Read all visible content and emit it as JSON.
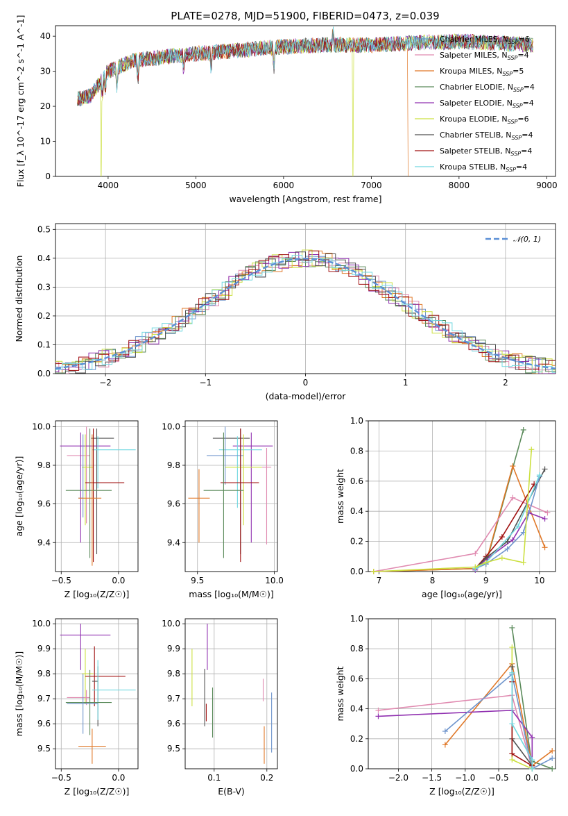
{
  "figure": {
    "title": "PLATE=0278, MJD=51900, FIBERID=0473, z=0.039"
  },
  "styles": {
    "palette": {
      "chabrier_miles": "#6e94cc",
      "salpeter_miles": "#e08ab0",
      "kroupa_miles": "#e07828",
      "chabrier_elodie": "#5a8a5a",
      "salpeter_elodie": "#9030b0",
      "kroupa_elodie": "#cce040",
      "chabrier_stelib": "#505050",
      "salpeter_stelib": "#a01010",
      "kroupa_stelib": "#70d8e0",
      "gaussian": "#5a8fd6"
    }
  },
  "chart_data": [
    {
      "id": "spectrum",
      "type": "line",
      "title": "PLATE=0278, MJD=51900, FIBERID=0473, z=0.039",
      "xlabel": "wavelength [Angstrom, rest frame]",
      "ylabel": "Flux [f_λ 10^-17 erg cm^-2 s^-1 A^-1]",
      "xlim": [
        3400,
        9100
      ],
      "ylim": [
        0,
        43
      ],
      "xticks": [
        4000,
        5000,
        6000,
        7000,
        8000,
        9000
      ],
      "yticks": [
        0,
        10,
        20,
        30,
        40
      ],
      "grid": false,
      "legend_position": "top-right",
      "series": [
        {
          "name": "Chabrier MILES, N_SSP=6",
          "color_key": "chabrier_miles"
        },
        {
          "name": "Salpeter MILES, N_SSP=4",
          "color_key": "salpeter_miles"
        },
        {
          "name": "Kroupa MILES, N_SSP=5",
          "color_key": "kroupa_miles",
          "cutoff": 7420
        },
        {
          "name": "Chabrier ELODIE, N_SSP=4",
          "color_key": "chabrier_elodie"
        },
        {
          "name": "Salpeter ELODIE, N_SSP=4",
          "color_key": "salpeter_elodie"
        },
        {
          "name": "Kroupa ELODIE, N_SSP=6",
          "color_key": "kroupa_elodie",
          "drops": [
            3920,
            6790
          ]
        },
        {
          "name": "Chabrier STELIB, N_SSP=4",
          "color_key": "chabrier_stelib"
        },
        {
          "name": "Salpeter STELIB, N_SSP=4",
          "color_key": "salpeter_stelib"
        },
        {
          "name": "Kroupa STELIB, N_SSP=4",
          "color_key": "kroupa_stelib"
        }
      ],
      "continuum": {
        "x": [
          3650,
          3800,
          4000,
          4300,
          4600,
          5000,
          5500,
          6000,
          6500,
          7000,
          7400,
          8000,
          8500,
          8850
        ],
        "y": [
          22,
          23,
          30,
          33,
          34,
          35,
          36,
          37,
          37.5,
          37.5,
          38,
          38.5,
          38,
          37.5
        ]
      }
    },
    {
      "id": "residuals",
      "type": "line",
      "xlabel": "(data-model)/error",
      "ylabel": "Normed distribution",
      "xlim": [
        -2.5,
        2.5
      ],
      "ylim": [
        0,
        0.52
      ],
      "xticks": [
        -2,
        -1,
        0,
        1,
        2
      ],
      "yticks": [
        0.0,
        0.1,
        0.2,
        0.3,
        0.4,
        0.5
      ],
      "grid": true,
      "legend_position": "top-right",
      "legend": [
        {
          "label": "𝒩(0, 1)",
          "color_key": "gaussian",
          "style": "dashed"
        }
      ],
      "histogram_peaks": [
        0.49,
        0.48,
        0.46,
        0.44,
        0.43,
        0.42,
        0.41,
        0.4,
        0.47
      ],
      "series_color_keys": [
        "chabrier_miles",
        "salpeter_miles",
        "kroupa_miles",
        "chabrier_elodie",
        "salpeter_elodie",
        "kroupa_elodie",
        "chabrier_stelib",
        "salpeter_stelib",
        "kroupa_stelib"
      ]
    },
    {
      "id": "z_vs_age",
      "type": "scatter",
      "xlabel": "Z [log₁₀(Z/Z☉)]",
      "ylabel": "age  [log₁₀(age/yr)]",
      "xlim": [
        -0.55,
        0.17
      ],
      "ylim": [
        9.25,
        10.03
      ],
      "xticks": [
        -0.5,
        0.0
      ],
      "yticks": [
        9.4,
        9.6,
        9.8,
        10.0
      ],
      "grid": true,
      "points": [
        {
          "x": -0.28,
          "y": 9.85,
          "xerr": [
            0.17,
            0.03
          ],
          "yerr": [
            0.35,
            0.15
          ],
          "color_key": "salpeter_miles"
        },
        {
          "x": -0.19,
          "y": 9.94,
          "xerr": [
            0.05,
            0.15
          ],
          "yerr": [
            0.6,
            0.05
          ],
          "color_key": "chabrier_stelib"
        },
        {
          "x": -0.33,
          "y": 9.9,
          "xerr": [
            0.18,
            0.26
          ],
          "yerr": [
            0.5,
            0.07
          ],
          "color_key": "salpeter_elodie"
        },
        {
          "x": -0.18,
          "y": 9.88,
          "xerr": [
            0.05,
            0.33
          ],
          "yerr": [
            0.2,
            0.07
          ],
          "color_key": "kroupa_stelib"
        },
        {
          "x": -0.29,
          "y": 9.79,
          "xerr": [
            0.03,
            0.07
          ],
          "yerr": [
            0.3,
            0.17
          ],
          "color_key": "kroupa_elodie"
        },
        {
          "x": -0.22,
          "y": 9.71,
          "xerr": [
            0.07,
            0.27
          ],
          "yerr": [
            0.41,
            0.28
          ],
          "color_key": "salpeter_stelib"
        },
        {
          "x": -0.25,
          "y": 9.67,
          "xerr": [
            0.21,
            0.19
          ],
          "yerr": [
            0.35,
            0.32
          ],
          "color_key": "chabrier_elodie"
        },
        {
          "x": -0.31,
          "y": 9.63,
          "xerr": [
            0.04,
            0.0
          ],
          "yerr": [
            0.1,
            0.33
          ],
          "color_key": "chabrier_miles"
        },
        {
          "x": -0.23,
          "y": 9.63,
          "xerr": [
            0.12,
            0.08
          ],
          "yerr": [
            0.35,
            0.33
          ],
          "color_key": "kroupa_miles"
        }
      ]
    },
    {
      "id": "mass_vs_age",
      "type": "scatter",
      "xlabel": "mass [log₁₀(M/M☉)]",
      "ylabel": "",
      "xlim": [
        9.42,
        10.02
      ],
      "ylim": [
        9.25,
        10.03
      ],
      "xticks": [
        9.5,
        10.0
      ],
      "yticks": [
        9.4,
        9.6,
        9.8,
        10.0
      ],
      "grid": true,
      "points": [
        {
          "x": 9.78,
          "y": 9.94,
          "xerr": [
            0.18,
            0.06
          ],
          "yerr": [
            0.6,
            0.05
          ],
          "color_key": "chabrier_stelib"
        },
        {
          "x": 9.85,
          "y": 9.9,
          "xerr": [
            0.12,
            0.14
          ],
          "yerr": [
            0.5,
            0.07
          ],
          "color_key": "salpeter_elodie"
        },
        {
          "x": 9.76,
          "y": 9.88,
          "xerr": [
            0.12,
            0.16
          ],
          "yerr": [
            0.3,
            0.07
          ],
          "color_key": "kroupa_stelib"
        },
        {
          "x": 9.68,
          "y": 9.85,
          "xerr": [
            0.12,
            0.12
          ],
          "yerr": [
            0.15,
            0.15
          ],
          "color_key": "chabrier_miles"
        },
        {
          "x": 9.8,
          "y": 9.79,
          "xerr": [
            0.12,
            0.12
          ],
          "yerr": [
            0.3,
            0.17
          ],
          "color_key": "kroupa_elodie"
        },
        {
          "x": 9.78,
          "y": 9.71,
          "xerr": [
            0.13,
            0.12
          ],
          "yerr": [
            0.41,
            0.28
          ],
          "color_key": "salpeter_stelib"
        },
        {
          "x": 9.67,
          "y": 9.67,
          "xerr": [
            0.13,
            0.13
          ],
          "yerr": [
            0.35,
            0.3
          ],
          "color_key": "chabrier_elodie"
        },
        {
          "x": 9.51,
          "y": 9.63,
          "xerr": [
            0.07,
            0.07
          ],
          "yerr": [
            0.23,
            0.15
          ],
          "color_key": "kroupa_miles"
        },
        {
          "x": 9.95,
          "y": 9.79,
          "xerr": [
            0.03,
            0.03
          ],
          "yerr": [
            0.4,
            0.1
          ],
          "color_key": "salpeter_miles"
        }
      ]
    },
    {
      "id": "age_vs_weight",
      "type": "line",
      "xlabel": "age  [log₁₀(age/yr)]",
      "ylabel": "mass weight",
      "xlim": [
        6.8,
        10.3
      ],
      "ylim": [
        0,
        1.0
      ],
      "xticks": [
        7,
        8,
        9,
        10
      ],
      "yticks": [
        0.0,
        0.2,
        0.4,
        0.6,
        0.8,
        1.0
      ],
      "grid": true,
      "series": [
        {
          "color_key": "chabrier_elodie",
          "x": [
            6.9,
            8.8,
            9.0,
            9.7
          ],
          "y": [
            0.0,
            0.02,
            0.05,
            0.94
          ]
        },
        {
          "color_key": "kroupa_miles",
          "x": [
            6.9,
            8.8,
            9.0,
            9.5,
            10.1
          ],
          "y": [
            0.0,
            0.02,
            0.06,
            0.7,
            0.16
          ]
        },
        {
          "color_key": "salpeter_miles",
          "x": [
            6.9,
            8.8,
            9.5,
            10.15
          ],
          "y": [
            0.0,
            0.12,
            0.49,
            0.39
          ]
        },
        {
          "color_key": "salpeter_elodie",
          "x": [
            8.8,
            9.0,
            9.5,
            9.8,
            10.1
          ],
          "y": [
            0.01,
            0.08,
            0.21,
            0.39,
            0.35
          ]
        },
        {
          "color_key": "salpeter_stelib",
          "x": [
            8.8,
            9.0,
            9.3,
            9.9
          ],
          "y": [
            0.02,
            0.1,
            0.23,
            0.58
          ]
        },
        {
          "color_key": "chabrier_stelib",
          "x": [
            8.8,
            9.0,
            9.4,
            10.1
          ],
          "y": [
            0.02,
            0.09,
            0.2,
            0.68
          ]
        },
        {
          "color_key": "chabrier_miles",
          "x": [
            8.8,
            9.0,
            9.4,
            9.7,
            10.0
          ],
          "y": [
            0.02,
            0.05,
            0.15,
            0.26,
            0.63
          ]
        },
        {
          "color_key": "kroupa_stelib",
          "x": [
            8.8,
            9.0,
            9.6,
            10.0
          ],
          "y": [
            0.02,
            0.06,
            0.3,
            0.64
          ]
        },
        {
          "color_key": "kroupa_elodie",
          "x": [
            6.9,
            8.8,
            9.0,
            9.3,
            9.7,
            9.85
          ],
          "y": [
            0.0,
            0.03,
            0.06,
            0.09,
            0.06,
            0.81
          ]
        }
      ]
    },
    {
      "id": "z_vs_mass",
      "type": "scatter",
      "xlabel": "Z [log₁₀(Z/Z☉)]",
      "ylabel": "mass [log₁₀(M/M☉)]",
      "xlim": [
        -0.55,
        0.17
      ],
      "ylim": [
        9.42,
        10.02
      ],
      "xticks": [
        -0.5,
        0.0
      ],
      "yticks": [
        9.5,
        9.6,
        9.7,
        9.8,
        9.9,
        10.0
      ],
      "grid": true,
      "points": [
        {
          "x": -0.33,
          "y": 9.955,
          "xerr": [
            0.18,
            0.26
          ],
          "yerr": [
            0.14,
            0.045
          ],
          "color_key": "salpeter_elodie"
        },
        {
          "x": -0.29,
          "y": 9.8,
          "xerr": [
            0.03,
            0.07
          ],
          "yerr": [
            0.12,
            0.1
          ],
          "color_key": "kroupa_elodie"
        },
        {
          "x": -0.21,
          "y": 9.79,
          "xerr": [
            0.08,
            0.27
          ],
          "yerr": [
            0.12,
            0.12
          ],
          "color_key": "salpeter_stelib"
        },
        {
          "x": -0.18,
          "y": 9.77,
          "xerr": [
            0.05,
            0.0
          ],
          "yerr": [
            0.18,
            0.06
          ],
          "color_key": "chabrier_stelib"
        },
        {
          "x": -0.18,
          "y": 9.735,
          "xerr": [
            0.05,
            0.33
          ],
          "yerr": [
            0.12,
            0.12
          ],
          "color_key": "kroupa_stelib"
        },
        {
          "x": -0.28,
          "y": 9.705,
          "xerr": [
            0.17,
            0.03
          ],
          "yerr": [
            0.03,
            0.03
          ],
          "color_key": "salpeter_miles"
        },
        {
          "x": -0.25,
          "y": 9.685,
          "xerr": [
            0.21,
            0.19
          ],
          "yerr": [
            0.13,
            0.13
          ],
          "color_key": "chabrier_elodie"
        },
        {
          "x": -0.31,
          "y": 9.68,
          "xerr": [
            0.14,
            0.13
          ],
          "yerr": [
            0.12,
            0.12
          ],
          "color_key": "chabrier_miles"
        },
        {
          "x": -0.23,
          "y": 9.51,
          "xerr": [
            0.12,
            0.12
          ],
          "yerr": [
            0.07,
            0.07
          ],
          "color_key": "kroupa_miles"
        }
      ]
    },
    {
      "id": "ebv_vs_mass",
      "type": "scatter",
      "xlabel": "E(B-V)",
      "ylabel": "",
      "xlim": [
        0.045,
        0.22
      ],
      "ylim": [
        9.42,
        10.02
      ],
      "xticks": [
        0.1,
        0.2
      ],
      "yticks": [
        9.5,
        9.6,
        9.7,
        9.8,
        9.9,
        10.0
      ],
      "grid": true,
      "points": [
        {
          "x": 0.087,
          "y": 9.955,
          "yerr": [
            0.14,
            0.045
          ],
          "color_key": "salpeter_elodie"
        },
        {
          "x": 0.058,
          "y": 9.8,
          "yerr": [
            0.13,
            0.1
          ],
          "color_key": "kroupa_elodie"
        },
        {
          "x": 0.082,
          "y": 9.7,
          "yerr": [
            0.11,
            0.12
          ],
          "color_key": "chabrier_stelib"
        },
        {
          "x": 0.085,
          "y": 9.65,
          "yerr": [
            0.04,
            0.03
          ],
          "color_key": "salpeter_stelib"
        },
        {
          "x": 0.097,
          "y": 9.645,
          "yerr": [
            0.1,
            0.1
          ],
          "color_key": "chabrier_elodie"
        },
        {
          "x": 0.193,
          "y": 9.74,
          "yerr": [
            0.05,
            0.04
          ],
          "color_key": "salpeter_miles"
        },
        {
          "x": 0.195,
          "y": 9.51,
          "yerr": [
            0.07,
            0.08
          ],
          "color_key": "kroupa_miles"
        },
        {
          "x": 0.209,
          "y": 9.605,
          "yerr": [
            0.12,
            0.12
          ],
          "color_key": "chabrier_miles"
        }
      ]
    },
    {
      "id": "z_vs_weight",
      "type": "line",
      "xlabel": "Z [log₁₀(Z/Z☉)]",
      "ylabel": "mass weight",
      "xlim": [
        -2.45,
        0.35
      ],
      "ylim": [
        0,
        1.0
      ],
      "xticks": [
        -2.0,
        -1.5,
        -1.0,
        -0.5,
        0.0
      ],
      "yticks": [
        0.0,
        0.2,
        0.4,
        0.6,
        0.8,
        1.0
      ],
      "grid": true,
      "series": [
        {
          "color_key": "chabrier_elodie",
          "x": [
            -0.3,
            0.0,
            0.0,
            0.3
          ],
          "y": [
            0.94,
            0.02,
            0.05,
            0.0
          ]
        },
        {
          "color_key": "kroupa_miles",
          "x": [
            -1.3,
            -0.3,
            0.0,
            0.3
          ],
          "y": [
            0.16,
            0.7,
            0.02,
            0.12
          ]
        },
        {
          "color_key": "salpeter_miles",
          "x": [
            -2.3,
            -0.3,
            0.0
          ],
          "y": [
            0.39,
            0.49,
            0.0
          ]
        },
        {
          "color_key": "salpeter_elodie",
          "x": [
            -2.3,
            -0.3,
            0.0,
            0.0
          ],
          "y": [
            0.35,
            0.39,
            0.21,
            0.0
          ]
        },
        {
          "color_key": "chabrier_miles",
          "x": [
            -1.3,
            -0.3,
            0.0,
            0.3
          ],
          "y": [
            0.25,
            0.63,
            0.0,
            0.07
          ]
        },
        {
          "color_key": "kroupa_elodie",
          "x": [
            -0.3,
            -0.3,
            0.0
          ],
          "y": [
            0.81,
            0.06,
            0.0
          ]
        },
        {
          "color_key": "chabrier_stelib",
          "x": [
            -0.3,
            -0.3,
            0.0
          ],
          "y": [
            0.68,
            0.2,
            0.02
          ]
        },
        {
          "color_key": "salpeter_stelib",
          "x": [
            -0.3,
            -0.3,
            0.0
          ],
          "y": [
            0.58,
            0.1,
            0.02
          ]
        },
        {
          "color_key": "kroupa_stelib",
          "x": [
            -0.3,
            -0.3,
            0.0,
            0.0
          ],
          "y": [
            0.64,
            0.3,
            0.06,
            0.0
          ]
        }
      ]
    }
  ]
}
